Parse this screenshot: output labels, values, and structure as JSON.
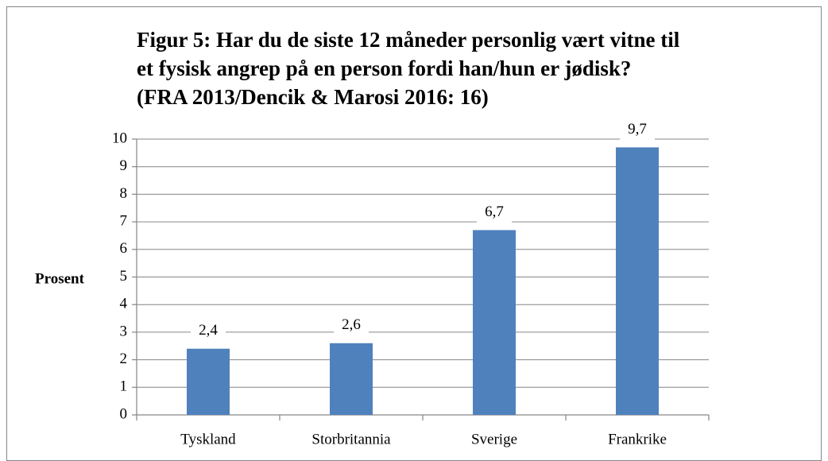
{
  "chart_data": {
    "type": "bar",
    "title": "Figur 5: Har du de siste 12 måneder personlig vært vitne til et fysisk angrep på en person fordi han/hun er jødisk? (FRA 2013/Dencik & Marosi 2016: 16)",
    "y_label": "Prosent",
    "categories": [
      "Tyskland",
      "Storbritannia",
      "Sverige",
      "Frankrike"
    ],
    "values": [
      2.4,
      2.6,
      6.7,
      9.7
    ],
    "value_labels": [
      "2,4",
      "2,6",
      "6,7",
      "9,7"
    ],
    "color": "#4f81bd",
    "ylim": [
      0,
      10
    ],
    "yticks": [
      0,
      1,
      2,
      3,
      4,
      5,
      6,
      7,
      8,
      9,
      10
    ],
    "grid": true
  }
}
